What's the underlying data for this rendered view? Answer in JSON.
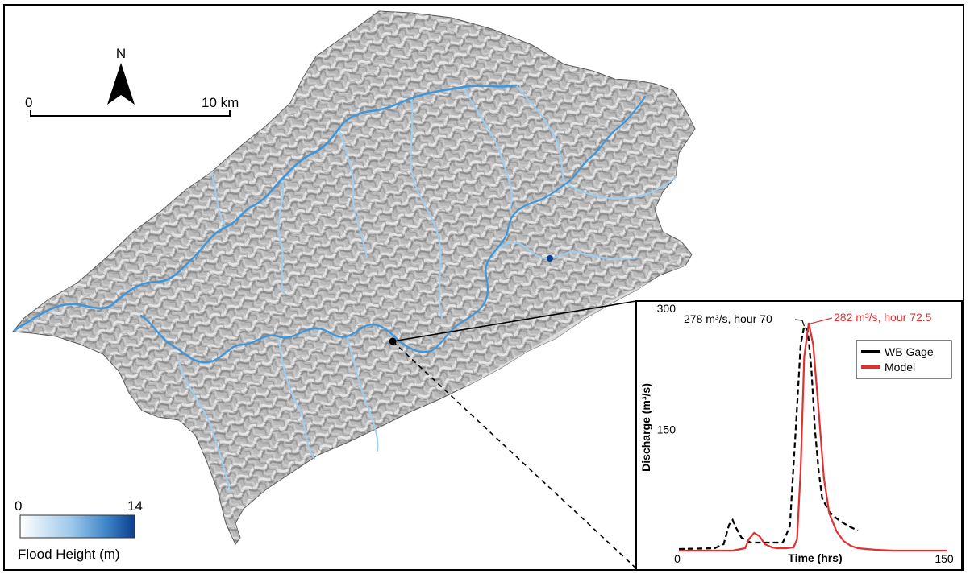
{
  "map": {
    "north_label": "N",
    "scale_bar": {
      "start_label": "0",
      "end_label": "10 km"
    },
    "legend": {
      "min_label": "0",
      "max_label": "14",
      "title": "Flood Height (m)",
      "colors": [
        "#ffffff",
        "#9cc8ea",
        "#3f86c9",
        "#0b3f8f"
      ]
    },
    "colors": {
      "terrain": "#b4b4b4",
      "terrain_dark": "#8e8e8e",
      "river": "#3f96db",
      "river_light": "#9fcff0",
      "river_deep": "#0b3f8f"
    }
  },
  "chart_data": {
    "type": "line",
    "ylabel": "Discharge (m³/s)",
    "xlabel": "Time (hrs)",
    "xlim": [
      0,
      150
    ],
    "ylim": [
      0,
      300
    ],
    "xticks": [
      "0",
      "150"
    ],
    "yticks": [
      "150",
      "300"
    ],
    "legend_position": "top-right",
    "series": [
      {
        "name": "WB Gage",
        "style": "dashed",
        "color": "#000000",
        "x": [
          0,
          20,
          25,
          28,
          30,
          32,
          35,
          40,
          50,
          58,
          62,
          65,
          68,
          70,
          72,
          74,
          76,
          78,
          80,
          84,
          88,
          92,
          96,
          100
        ],
        "y": [
          2,
          3,
          8,
          32,
          38,
          28,
          16,
          10,
          10,
          10,
          30,
          140,
          255,
          278,
          272,
          225,
          150,
          100,
          65,
          48,
          40,
          34,
          29,
          25
        ]
      },
      {
        "name": "Model",
        "style": "solid",
        "color": "#e03131",
        "x": [
          0,
          30,
          37,
          39,
          42,
          45,
          48,
          52,
          55,
          60,
          64,
          66,
          68,
          70,
          72.5,
          75,
          78,
          81,
          84,
          88,
          92,
          96,
          100,
          110,
          120,
          130,
          150
        ],
        "y": [
          0,
          0,
          3,
          14,
          22,
          18,
          8,
          4,
          3,
          3,
          4,
          14,
          100,
          240,
          282,
          255,
          175,
          90,
          46,
          24,
          12,
          6,
          3,
          1,
          0,
          0,
          0
        ]
      }
    ],
    "annotations": [
      {
        "text": "278 m³/s, hour 70",
        "x": 70,
        "y": 278,
        "color": "#000000"
      },
      {
        "text": "282 m³/s, hour 72.5",
        "x": 72.5,
        "y": 282,
        "color": "#e03131"
      }
    ]
  }
}
